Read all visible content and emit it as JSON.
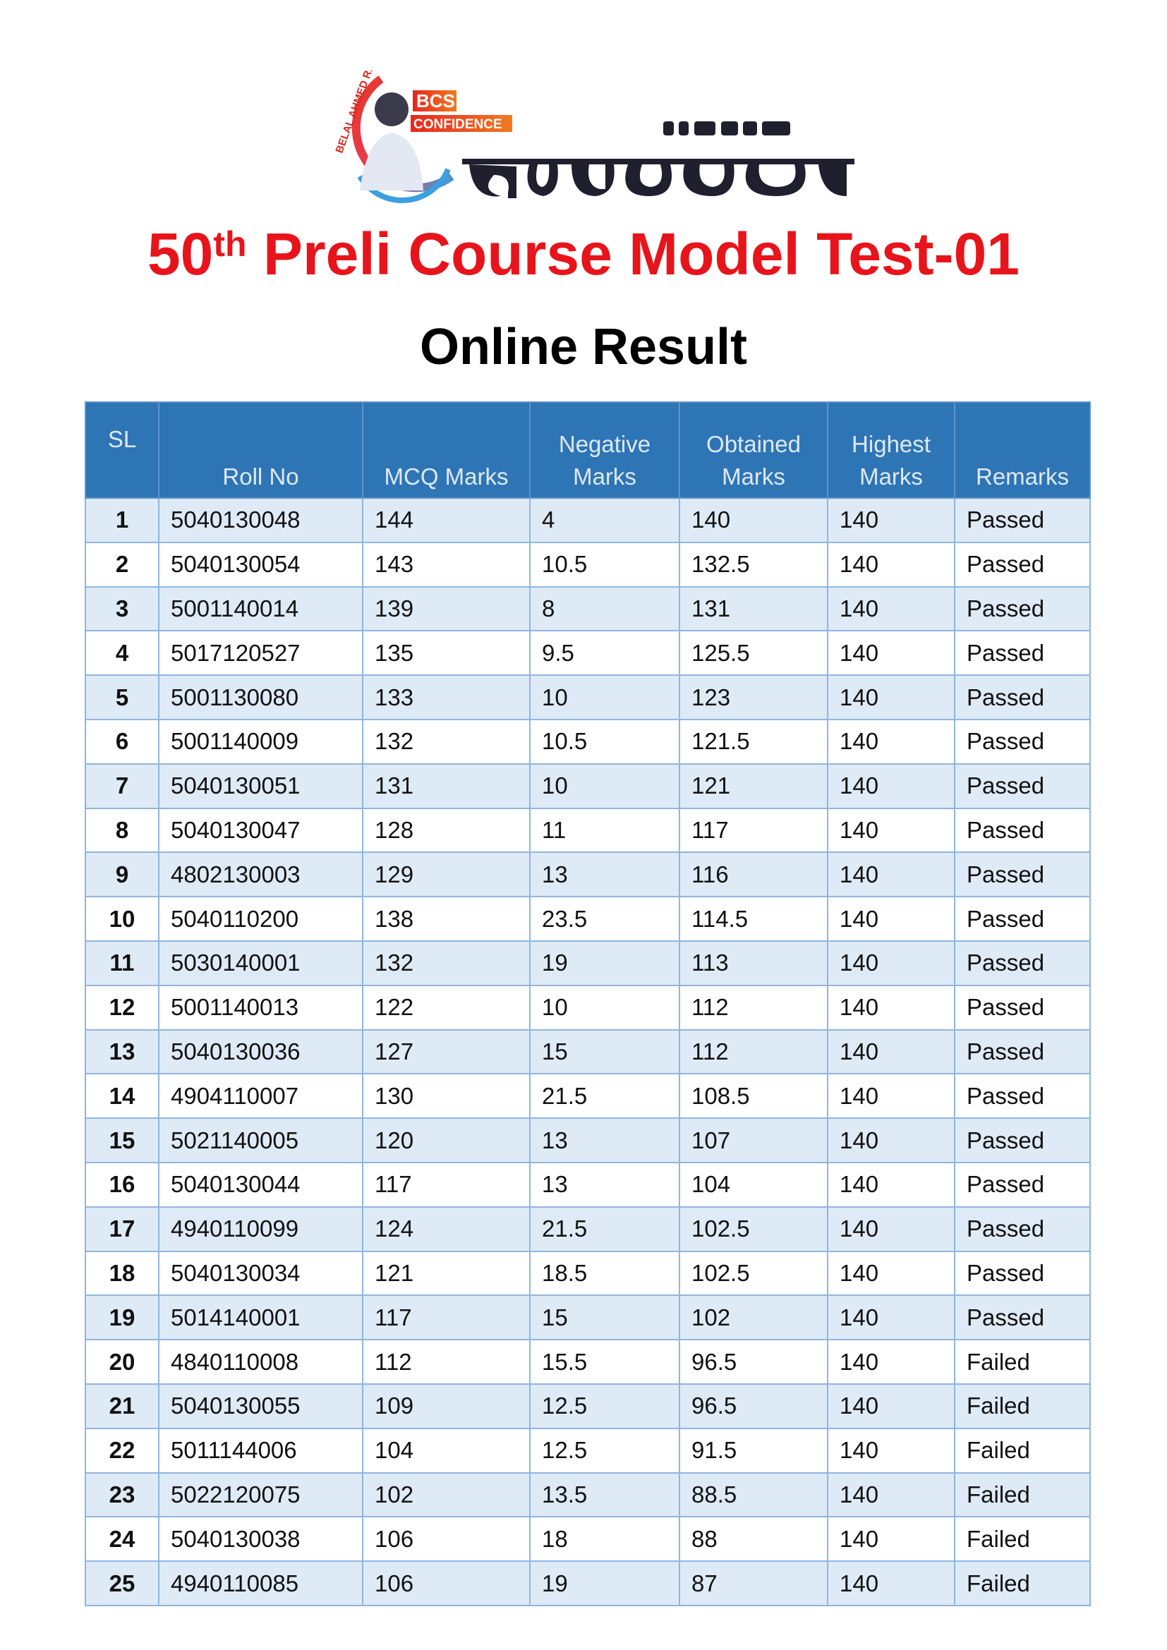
{
  "logo": {
    "arc_text": "BELAL AHMED RAJU",
    "badge_top": "BCS",
    "badge_bottom": "CONFIDENCE",
    "bengali_small": "বেলাল আহমেদ রাজু",
    "bengali_large": "কনফিডেন্স"
  },
  "title": {
    "prefix": "50",
    "sup": "th",
    "rest": " Preli Course Model Test-01"
  },
  "subtitle": "Online Result",
  "colors": {
    "header_bg": "#2e75b6",
    "row_alt": "#deeaf6",
    "title_red": "#e8141b"
  },
  "table": {
    "headers": [
      "SL",
      "Roll No",
      "MCQ Marks",
      "Negative Marks",
      "Obtained Marks",
      "Highest Marks",
      "Remarks"
    ],
    "rows": [
      [
        "1",
        "5040130048",
        "144",
        "4",
        "140",
        "140",
        "Passed"
      ],
      [
        "2",
        "5040130054",
        "143",
        "10.5",
        "132.5",
        "140",
        "Passed"
      ],
      [
        "3",
        "5001140014",
        "139",
        "8",
        "131",
        "140",
        "Passed"
      ],
      [
        "4",
        "5017120527",
        "135",
        "9.5",
        "125.5",
        "140",
        "Passed"
      ],
      [
        "5",
        "5001130080",
        "133",
        "10",
        "123",
        "140",
        "Passed"
      ],
      [
        "6",
        "5001140009",
        "132",
        "10.5",
        "121.5",
        "140",
        "Passed"
      ],
      [
        "7",
        "5040130051",
        "131",
        "10",
        "121",
        "140",
        "Passed"
      ],
      [
        "8",
        "5040130047",
        "128",
        "11",
        "117",
        "140",
        "Passed"
      ],
      [
        "9",
        "4802130003",
        "129",
        "13",
        "116",
        "140",
        "Passed"
      ],
      [
        "10",
        "5040110200",
        "138",
        "23.5",
        "114.5",
        "140",
        "Passed"
      ],
      [
        "11",
        "5030140001",
        "132",
        "19",
        "113",
        "140",
        "Passed"
      ],
      [
        "12",
        "5001140013",
        "122",
        "10",
        "112",
        "140",
        "Passed"
      ],
      [
        "13",
        "5040130036",
        "127",
        "15",
        "112",
        "140",
        "Passed"
      ],
      [
        "14",
        "4904110007",
        "130",
        "21.5",
        "108.5",
        "140",
        "Passed"
      ],
      [
        "15",
        "5021140005",
        "120",
        "13",
        "107",
        "140",
        "Passed"
      ],
      [
        "16",
        "5040130044",
        "117",
        "13",
        "104",
        "140",
        "Passed"
      ],
      [
        "17",
        "4940110099",
        "124",
        "21.5",
        "102.5",
        "140",
        "Passed"
      ],
      [
        "18",
        "5040130034",
        "121",
        "18.5",
        "102.5",
        "140",
        "Passed"
      ],
      [
        "19",
        "5014140001",
        "117",
        "15",
        "102",
        "140",
        "Passed"
      ],
      [
        "20",
        "4840110008",
        "112",
        "15.5",
        "96.5",
        "140",
        "Failed"
      ],
      [
        "21",
        "5040130055",
        "109",
        "12.5",
        "96.5",
        "140",
        "Failed"
      ],
      [
        "22",
        "5011144006",
        "104",
        "12.5",
        "91.5",
        "140",
        "Failed"
      ],
      [
        "23",
        "5022120075",
        "102",
        "13.5",
        "88.5",
        "140",
        "Failed"
      ],
      [
        "24",
        "5040130038",
        "106",
        "18",
        "88",
        "140",
        "Failed"
      ],
      [
        "25",
        "4940110085",
        "106",
        "19",
        "87",
        "140",
        "Failed"
      ]
    ]
  }
}
